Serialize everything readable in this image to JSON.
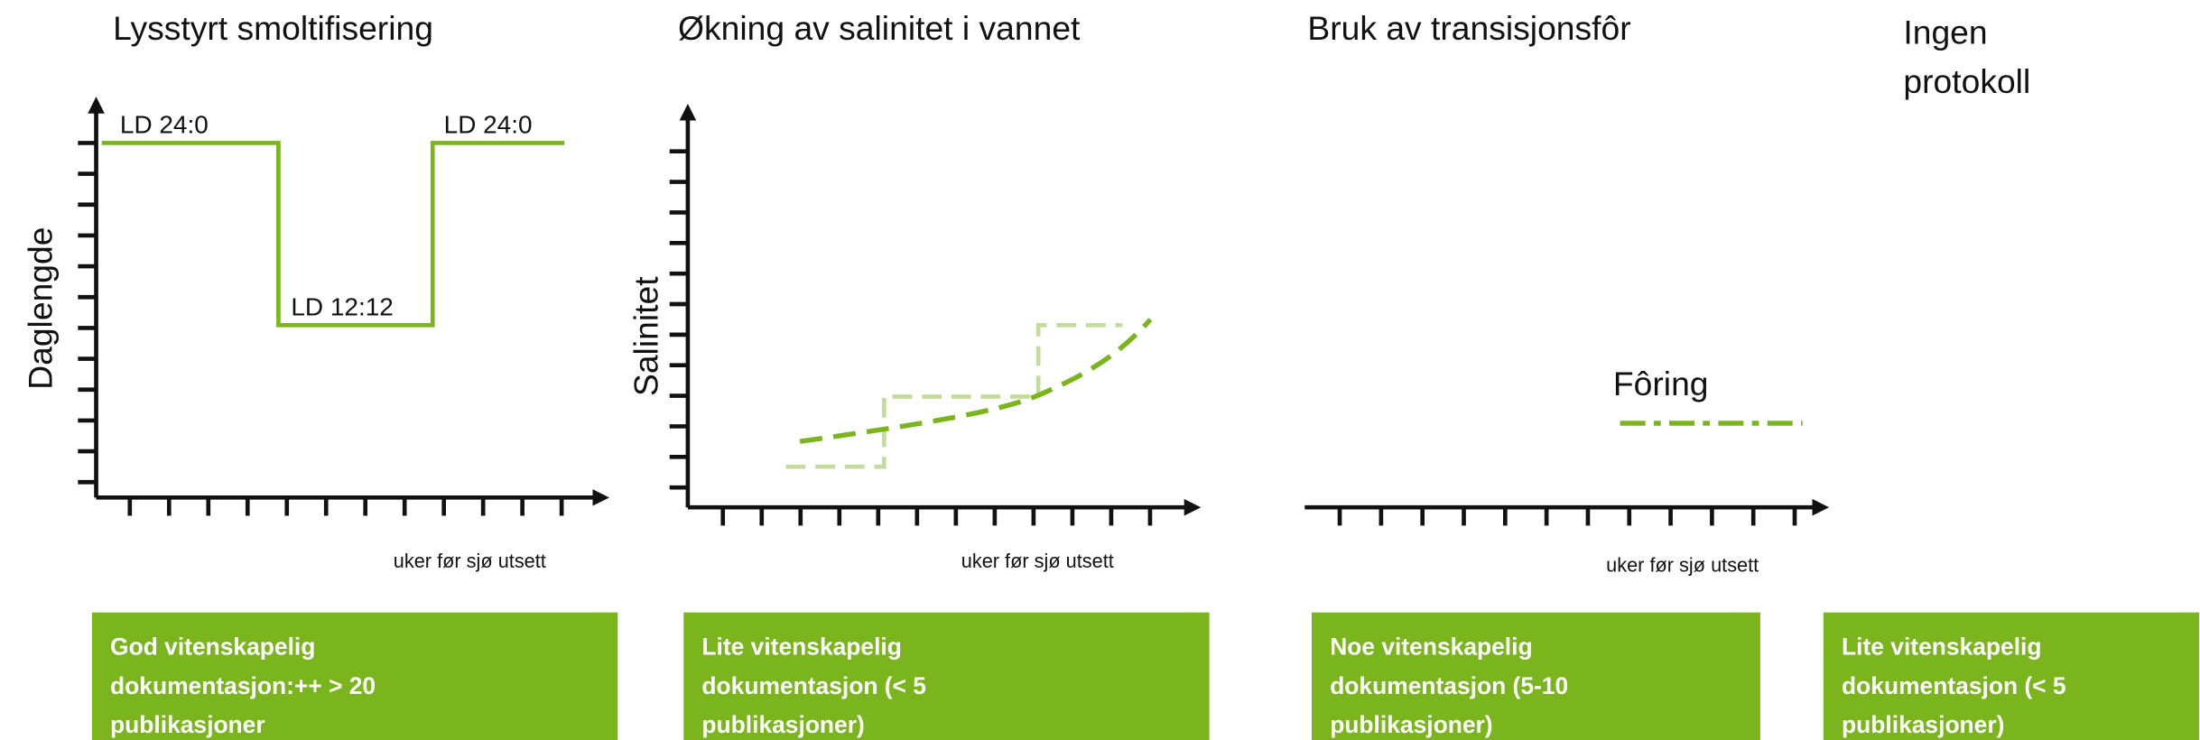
{
  "panels": [
    {
      "title": [
        "Lysstyrt smoltifisering"
      ],
      "y_label": "Daglengde",
      "x_label": "uker før sjø utsett",
      "labels": [
        "LD 24:0",
        "LD 12:12",
        "LD 24:0"
      ],
      "box": [
        "God vitenskapelig",
        "dokumentasjon:++ > 20",
        "publikasjoner"
      ]
    },
    {
      "title": [
        "Økning av salinitet i vannet"
      ],
      "y_label": "Salinitet",
      "x_label": "uker før sjø utsett",
      "box": [
        "Lite vitenskapelig",
        "dokumentasjon (< 5",
        "publikasjoner)"
      ]
    },
    {
      "title": [
        "Bruk av transisjonsfôr"
      ],
      "x_label": "uker før sjø utsett",
      "labels": [
        "Fôring"
      ],
      "box": [
        "Noe vitenskapelig",
        "dokumentasjon (5-10",
        "publikasjoner)"
      ]
    },
    {
      "title": [
        "Ingen",
        "protokoll"
      ],
      "box": [
        "Lite vitenskapelig",
        "dokumentasjon (< 5",
        "publikasjoner)"
      ]
    }
  ]
}
